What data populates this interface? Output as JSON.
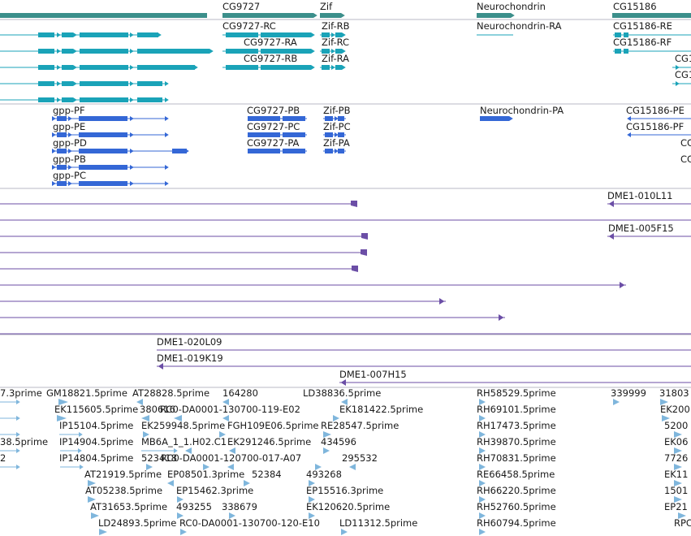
{
  "view": "genome-browser-tracks",
  "colors": {
    "gene": "#3c8f8b",
    "transcript_a": "#1aa3b8",
    "transcript_b": "#3467d6",
    "clone": "#6b4ea6",
    "est": "#7fb6dc",
    "divider": "#b9b9c4"
  },
  "track_gene": {
    "labels": [
      "CG9727",
      "Zif",
      "Neurochondrin",
      "CG15186"
    ]
  },
  "track_transcripts_a": {
    "labels": [
      "CG9727-RC",
      "CG9727-RA",
      "CG9727-RB",
      "Zif-RB",
      "Zif-RC",
      "Zif-RA",
      "Neurochondrin-RA",
      "CG15186-RE",
      "CG15186-RF",
      "CG1",
      "CG1"
    ]
  },
  "track_transcripts_b": {
    "labels": [
      "gpp-PF",
      "gpp-PE",
      "gpp-PD",
      "gpp-PB",
      "gpp-PC",
      "CG9727-PB",
      "CG9727-PC",
      "CG9727-PA",
      "Zif-PB",
      "Zif-PC",
      "Zif-PA",
      "Neurochondrin-PA",
      "CG15186-PE",
      "CG15186-PF",
      "CG",
      "CG"
    ]
  },
  "track_clones": {
    "labels": [
      "DME1-010L11",
      "DME1-005F15",
      "DME1-020L09",
      "DME1-019K19",
      "DME1-007H15"
    ]
  },
  "track_ests": {
    "labels": [
      "7.3prime",
      "GM18821.5prime",
      "AT28828.5prime",
      "164280",
      "LD38836.5prime",
      "RH58529.5prime",
      "339999",
      "31803",
      "EK115605.5prime",
      "380616",
      "RC0-DA0001-130700-119-E02",
      "EK181422.5prime",
      "RH69101.5prime",
      "EK200",
      "IP15104.5prime",
      "EK259948.5prime",
      "FGH109E06.5prime",
      "RE28547.5prime",
      "RH17473.5prime",
      "5200",
      "38.5prime",
      "IP14904.5prime",
      "MB6A_1_1.H02.C1",
      "EK291246.5prime",
      "434596",
      "RH39870.5prime",
      "EK06",
      "2",
      "IP14804.5prime",
      "523418",
      "RC0-DA0001-120700-017-A07",
      "295532",
      "RH70831.5prime",
      "7726",
      "AT21919.5prime",
      "EP08501.3prime",
      "52384",
      "493268",
      "RE66458.5prime",
      "EK11",
      "AT05238.5prime",
      "EP15462.3prime",
      "EP15516.3prime",
      "RH66220.5prime",
      "1501",
      "AT31653.5prime",
      "493255",
      "338679",
      "EK120620.5prime",
      "RH52760.5prime",
      "EP21",
      "LD24893.5prime",
      "RC0-DA0001-130700-120-E10",
      "LD11312.5prime",
      "RH60794.5prime",
      "RPC"
    ]
  }
}
